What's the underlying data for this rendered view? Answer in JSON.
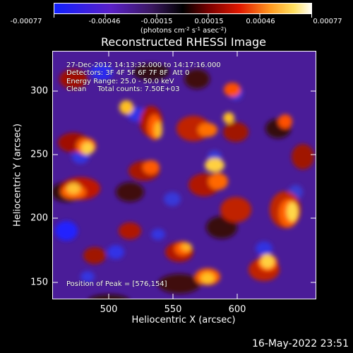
{
  "colorbar": {
    "ticks": [
      "-0.00077",
      "-0.00046",
      "-0.00015",
      "0.00015",
      "0.00046",
      "0.00077"
    ],
    "units_text": "(photons cm",
    "units_exp1": "-2",
    "units_mid": " s",
    "units_exp2": "-1",
    "units_mid2": " asec",
    "units_exp3": "-2",
    "units_end": ")"
  },
  "title": "Reconstructed RHESSI Image",
  "info": {
    "time_range": "27-Dec-2012 14:13:32.000 to 14:17:16.000",
    "detectors": "Detectors: 3F 4F 5F 6F 7F 8F  Att 0",
    "energy": "Energy Range: 25.0 - 50.0 keV",
    "clean": "Clean     Total counts: 7.50E+03",
    "peak": "Position of Peak = [576,154]"
  },
  "axes": {
    "xlabel": "Heliocentric X (arcsec)",
    "ylabel": "Heliocentric Y (arcsec)",
    "xticks": [
      "500",
      "550",
      "600"
    ],
    "yticks": [
      "300",
      "250",
      "200",
      "150"
    ]
  },
  "timestamp": "16-May-2022 23:51",
  "colors": {
    "colormap": [
      "#1020ff",
      "#6020c0",
      "#401868",
      "#000000",
      "#900000",
      "#ff4000",
      "#ffd040",
      "#ffffff"
    ]
  }
}
